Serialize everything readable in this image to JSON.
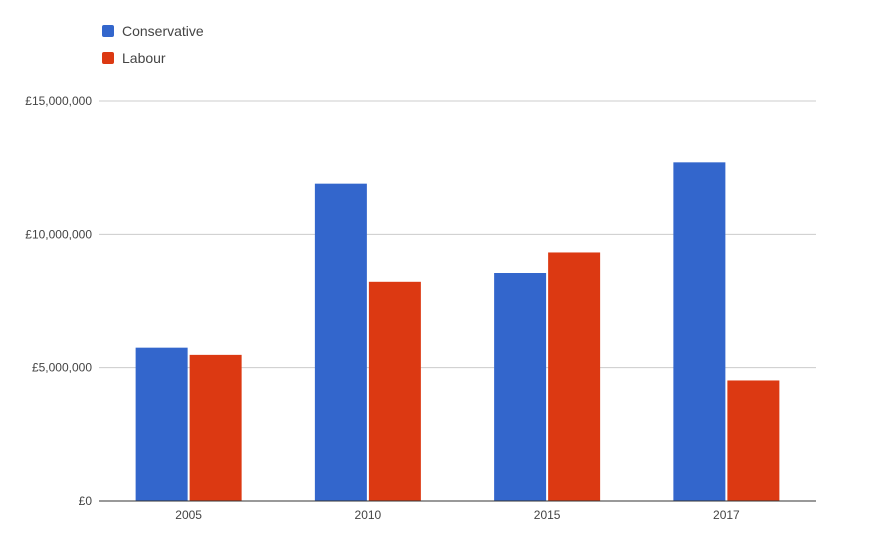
{
  "chart_data": {
    "type": "bar",
    "title": "",
    "xlabel": "",
    "ylabel": "",
    "categories": [
      "2005",
      "2010",
      "2015",
      "2017"
    ],
    "series": [
      {
        "name": "Conservative",
        "color": "#3366cc",
        "values": [
          5750000,
          11900000,
          8550000,
          12700000
        ]
      },
      {
        "name": "Labour",
        "color": "#dc3912",
        "values": [
          5480000,
          8220000,
          9320000,
          4520000
        ]
      }
    ],
    "ylim": [
      0,
      15000000
    ],
    "yticks": [
      0,
      5000000,
      10000000,
      15000000
    ],
    "ytick_labels": [
      "£0",
      "£5,000,000",
      "£10,000,000",
      "£15,000,000"
    ],
    "grid": true,
    "legend_position": "top-left",
    "colors": {
      "gridline": "#cccccc",
      "axis": "#333333",
      "text": "#444444"
    }
  }
}
